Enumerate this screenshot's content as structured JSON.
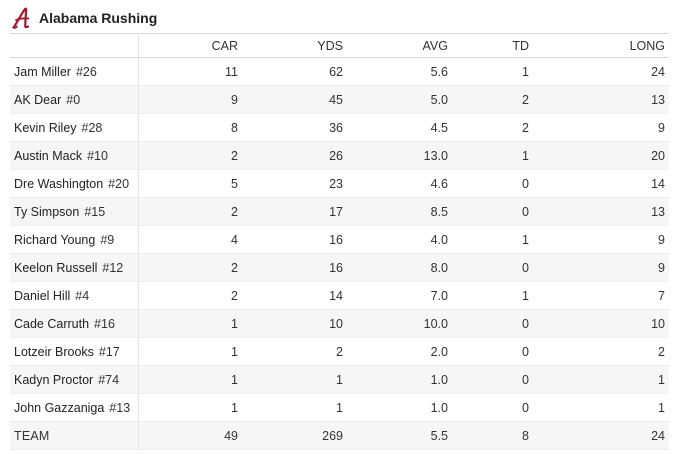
{
  "header": {
    "title": "Alabama Rushing",
    "logo_icon": "alabama-script-a-icon",
    "logo_color": "#9e1b32"
  },
  "table": {
    "columns": [
      "",
      "CAR",
      "YDS",
      "AVG",
      "TD",
      "LONG"
    ],
    "rows": [
      {
        "name": "Jam Miller",
        "jersey": "#26",
        "car": "11",
        "yds": "62",
        "avg": "5.6",
        "td": "1",
        "long": "24"
      },
      {
        "name": "AK Dear",
        "jersey": "#0",
        "car": "9",
        "yds": "45",
        "avg": "5.0",
        "td": "2",
        "long": "13"
      },
      {
        "name": "Kevin Riley",
        "jersey": "#28",
        "car": "8",
        "yds": "36",
        "avg": "4.5",
        "td": "2",
        "long": "9"
      },
      {
        "name": "Austin Mack",
        "jersey": "#10",
        "car": "2",
        "yds": "26",
        "avg": "13.0",
        "td": "1",
        "long": "20"
      },
      {
        "name": "Dre Washington",
        "jersey": "#20",
        "car": "5",
        "yds": "23",
        "avg": "4.6",
        "td": "0",
        "long": "14"
      },
      {
        "name": "Ty Simpson",
        "jersey": "#15",
        "car": "2",
        "yds": "17",
        "avg": "8.5",
        "td": "0",
        "long": "13"
      },
      {
        "name": "Richard Young",
        "jersey": "#9",
        "car": "4",
        "yds": "16",
        "avg": "4.0",
        "td": "1",
        "long": "9"
      },
      {
        "name": "Keelon Russell",
        "jersey": "#12",
        "car": "2",
        "yds": "16",
        "avg": "8.0",
        "td": "0",
        "long": "9"
      },
      {
        "name": "Daniel Hill",
        "jersey": "#4",
        "car": "2",
        "yds": "14",
        "avg": "7.0",
        "td": "1",
        "long": "7"
      },
      {
        "name": "Cade Carruth",
        "jersey": "#16",
        "car": "1",
        "yds": "10",
        "avg": "10.0",
        "td": "0",
        "long": "10"
      },
      {
        "name": "Lotzeir Brooks",
        "jersey": "#17",
        "car": "1",
        "yds": "2",
        "avg": "2.0",
        "td": "0",
        "long": "2"
      },
      {
        "name": "Kadyn Proctor",
        "jersey": "#74",
        "car": "1",
        "yds": "1",
        "avg": "1.0",
        "td": "0",
        "long": "1"
      },
      {
        "name": "John Gazzaniga",
        "jersey": "#13",
        "car": "1",
        "yds": "1",
        "avg": "1.0",
        "td": "0",
        "long": "1"
      }
    ],
    "team": {
      "name": "TEAM",
      "car": "49",
      "yds": "269",
      "avg": "5.5",
      "td": "8",
      "long": "24"
    }
  }
}
